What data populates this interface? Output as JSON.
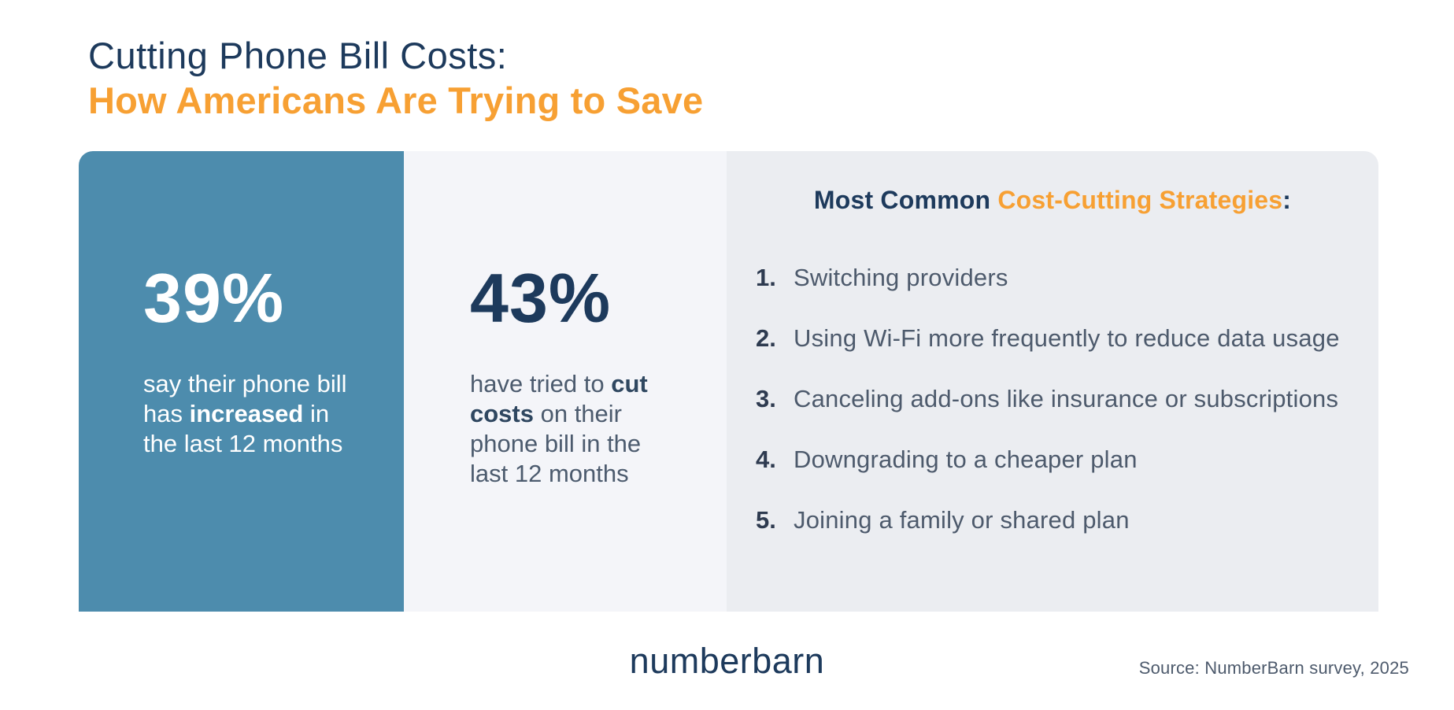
{
  "header": {
    "title_line1": "Cutting Phone Bill Costs:",
    "title_line2": "How Americans Are Trying to Save"
  },
  "stats": {
    "increased_bill": {
      "value": "39%",
      "desc_pre": "say their phone bill has ",
      "desc_bold": "increased",
      "desc_post": " in the last 12 months"
    },
    "tried_to_cut": {
      "value": "43%",
      "desc_pre": "have tried to ",
      "desc_bold": "cut costs",
      "desc_post": " on their phone bill in the last 12 months"
    }
  },
  "strategies": {
    "heading_normal": "Most Common ",
    "heading_highlight": "Cost-Cutting Strategies",
    "heading_suffix": ":",
    "items": [
      {
        "number": "1.",
        "label": "Switching providers"
      },
      {
        "number": "2.",
        "label": "Using Wi-Fi more frequently to reduce data usage"
      },
      {
        "number": "3.",
        "label": "Canceling add-ons like insurance or subscriptions"
      },
      {
        "number": "4.",
        "label": "Downgrading to a cheaper plan"
      },
      {
        "number": "5.",
        "label": "Joining a family or shared plan"
      }
    ]
  },
  "footer": {
    "logo_text": "numberbarn",
    "source": "Source: NumberBarn survey, 2025"
  },
  "colors": {
    "navy": "#1D3A5C",
    "orange": "#F7A033",
    "panel_blue": "#4D8CAD",
    "panel_mid_gray": "#F4F5F9",
    "panel_right_gray": "#EBEDF1",
    "slate_text": "#4D5A6C",
    "white": "#FFFFFF"
  },
  "chart_data": {
    "type": "table",
    "title": "Cutting Phone Bill Costs: How Americans Are Trying to Save",
    "stats": [
      {
        "value_pct": 39,
        "label": "say their phone bill has increased in the last 12 months"
      },
      {
        "value_pct": 43,
        "label": "have tried to cut costs on their phone bill in the last 12 months"
      }
    ],
    "ranked_list": {
      "title": "Most Common Cost-Cutting Strategies",
      "items": [
        "Switching providers",
        "Using Wi-Fi more frequently to reduce data usage",
        "Canceling add-ons like insurance or subscriptions",
        "Downgrading to a cheaper plan",
        "Joining a family or shared plan"
      ]
    },
    "source": "Source: NumberBarn survey, 2025"
  }
}
